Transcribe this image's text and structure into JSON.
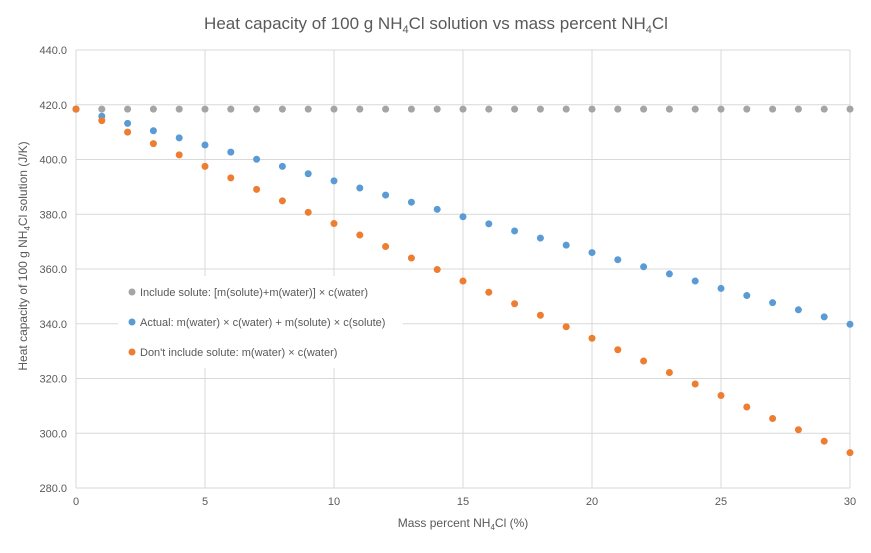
{
  "chart_data": {
    "type": "scatter",
    "title_parts": [
      "Heat capacity of 100 g NH",
      "4",
      "Cl solution vs mass percent NH",
      "4",
      "Cl"
    ],
    "xlabel_parts": [
      "Mass percent NH",
      "4",
      "Cl (%)"
    ],
    "ylabel_parts": [
      "Heat capacity of 100 g NH",
      "4",
      "Cl solution (J/K)"
    ],
    "xlim": [
      0,
      30
    ],
    "ylim": [
      280,
      440
    ],
    "x_ticks": [
      0,
      5,
      10,
      15,
      20,
      25,
      30
    ],
    "x_tick_labels": [
      "0",
      "5",
      "10",
      "15",
      "20",
      "25",
      "30"
    ],
    "y_ticks": [
      280,
      300,
      320,
      340,
      360,
      380,
      400,
      420,
      440
    ],
    "y_tick_labels": [
      "280.0",
      "300.0",
      "320.0",
      "340.0",
      "360.0",
      "380.0",
      "400.0",
      "420.0",
      "440.0"
    ],
    "grid": true,
    "legend_position": "center-left",
    "x": [
      0,
      1,
      2,
      3,
      4,
      5,
      6,
      7,
      8,
      9,
      10,
      11,
      12,
      13,
      14,
      15,
      16,
      17,
      18,
      19,
      20,
      21,
      22,
      23,
      24,
      25,
      26,
      27,
      28,
      29,
      30
    ],
    "series": [
      {
        "name": "Include solute: [m(solute)+m(water)] × c(water)",
        "color": "#a5a5a5",
        "values": [
          418.4,
          418.4,
          418.4,
          418.4,
          418.4,
          418.4,
          418.4,
          418.4,
          418.4,
          418.4,
          418.4,
          418.4,
          418.4,
          418.4,
          418.4,
          418.4,
          418.4,
          418.4,
          418.4,
          418.4,
          418.4,
          418.4,
          418.4,
          418.4,
          418.4,
          418.4,
          418.4,
          418.4,
          418.4,
          418.4,
          418.4
        ]
      },
      {
        "name": "Actual: m(water) × c(water) + m(solute) × c(solute)",
        "color": "#5b9bd5",
        "values": [
          418.4,
          415.8,
          413.2,
          410.5,
          407.9,
          405.3,
          402.7,
          400.1,
          397.5,
          394.8,
          392.2,
          389.6,
          387.0,
          384.4,
          381.8,
          379.1,
          376.5,
          373.9,
          371.3,
          368.7,
          366.0,
          363.4,
          360.8,
          358.2,
          355.6,
          352.9,
          350.3,
          347.7,
          345.1,
          342.5,
          339.8
        ]
      },
      {
        "name": "Don't include solute: m(water) × c(water)",
        "color": "#ed7d31",
        "values": [
          418.4,
          414.2,
          410.0,
          405.8,
          401.7,
          397.5,
          393.3,
          389.1,
          384.9,
          380.7,
          376.6,
          372.4,
          368.2,
          364.0,
          359.8,
          355.6,
          351.5,
          347.3,
          343.1,
          338.9,
          334.7,
          330.5,
          326.4,
          322.2,
          318.0,
          313.8,
          309.6,
          305.4,
          301.3,
          297.1,
          292.9
        ]
      }
    ]
  }
}
